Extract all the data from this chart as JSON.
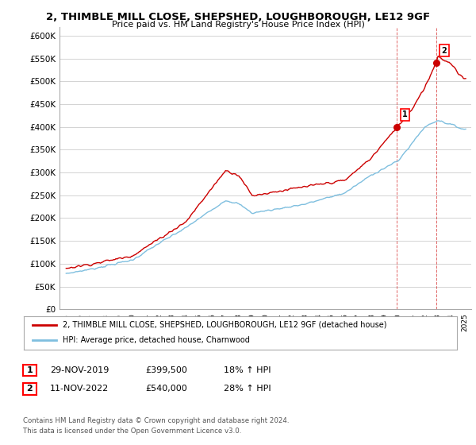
{
  "title": "2, THIMBLE MILL CLOSE, SHEPSHED, LOUGHBOROUGH, LE12 9GF",
  "subtitle": "Price paid vs. HM Land Registry's House Price Index (HPI)",
  "ylabel_ticks": [
    "£0",
    "£50K",
    "£100K",
    "£150K",
    "£200K",
    "£250K",
    "£300K",
    "£350K",
    "£400K",
    "£450K",
    "£500K",
    "£550K",
    "£600K"
  ],
  "ylim": [
    0,
    620000
  ],
  "yticks": [
    0,
    50000,
    100000,
    150000,
    200000,
    250000,
    300000,
    350000,
    400000,
    450000,
    500000,
    550000,
    600000
  ],
  "sale1_date": 2019.91,
  "sale1_price": 399500,
  "sale1_label": "1",
  "sale2_date": 2022.87,
  "sale2_price": 540000,
  "sale2_label": "2",
  "hpi_color": "#7fbfdf",
  "price_color": "#cc0000",
  "background_color": "#ffffff",
  "grid_color": "#cccccc",
  "legend_property": "2, THIMBLE MILL CLOSE, SHEPSHED, LOUGHBOROUGH, LE12 9GF (detached house)",
  "legend_hpi": "HPI: Average price, detached house, Charnwood",
  "table_row1": [
    "1",
    "29-NOV-2019",
    "£399,500",
    "18% ↑ HPI"
  ],
  "table_row2": [
    "2",
    "11-NOV-2022",
    "£540,000",
    "28% ↑ HPI"
  ],
  "footnote": "Contains HM Land Registry data © Crown copyright and database right 2024.\nThis data is licensed under the Open Government Licence v3.0.",
  "xmin": 1994.5,
  "xmax": 2025.5
}
